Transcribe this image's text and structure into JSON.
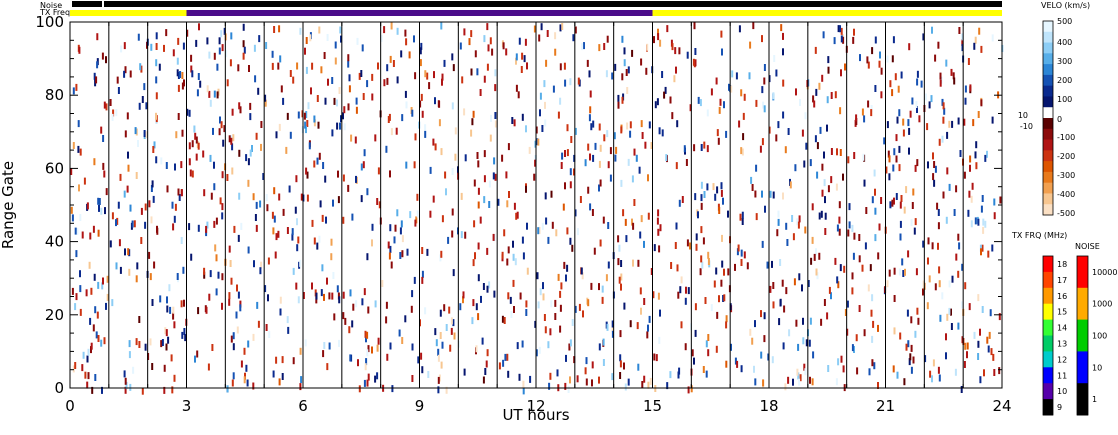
{
  "chart_data": {
    "type": "heatmap",
    "xlabel": "UT hours",
    "ylabel": "Range Gate",
    "x_ticks": [
      "0",
      "3",
      "6",
      "9",
      "12",
      "15",
      "18",
      "21",
      "24"
    ],
    "y_ticks": [
      "0",
      "20",
      "40",
      "60",
      "80",
      "100"
    ],
    "xlim": [
      0,
      24
    ],
    "ylim": [
      0,
      100
    ],
    "scan_boundaries_hours": [
      1,
      2,
      3,
      4,
      5,
      6,
      7,
      8,
      9,
      10,
      11,
      12,
      13,
      14,
      15,
      16,
      17,
      18,
      19,
      20,
      21,
      22,
      23
    ],
    "noise_bar": {
      "label": "Noise",
      "color": "#000000"
    },
    "txfreq_bar": {
      "label": "TX Freq",
      "segments": [
        {
          "start": 0,
          "end": 3,
          "color": "#ffff00"
        },
        {
          "start": 3,
          "end": 15,
          "color": "#4b0c8a"
        },
        {
          "start": 15,
          "end": 24,
          "color": "#ffff00"
        }
      ]
    },
    "velocity_colorbar": {
      "title": "VELO (km/s)",
      "ticks": [
        "500",
        "400",
        "300",
        "200",
        "100",
        "0",
        "-100",
        "-200",
        "-300",
        "-400",
        "-500"
      ],
      "side_labels": [
        "10",
        "-10"
      ],
      "colors_top_to_bottom": [
        "#e6f6ff",
        "#bfe4fb",
        "#8ccdf5",
        "#57aee8",
        "#2c86d6",
        "#1552b4",
        "#0a2a8e",
        "#05156e",
        "#ffffff",
        "#5a0000",
        "#8b0a0a",
        "#b01414",
        "#cc3311",
        "#dd5500",
        "#e87a1c",
        "#f1a050",
        "#f7c690",
        "#fbe0c4"
      ]
    },
    "txfreq_colorbar": {
      "title": "TX FRQ (MHz)",
      "ticks": [
        "18",
        "17",
        "16",
        "15",
        "14",
        "13",
        "12",
        "11",
        "10",
        "9"
      ],
      "colors_top_to_bottom": [
        "#ff0000",
        "#ff4400",
        "#ff9900",
        "#ffff00",
        "#33ff33",
        "#00cc66",
        "#00cccc",
        "#0000ff",
        "#5500aa",
        "#000000"
      ]
    },
    "noise_colorbar": {
      "title": "NOISE",
      "ticks": [
        "10000",
        "1000",
        "100",
        "10",
        "1"
      ],
      "colors_top_to_bottom": [
        "#ff0000",
        "#ffaa00",
        "#00cc00",
        "#0000ff",
        "#000000"
      ]
    }
  }
}
